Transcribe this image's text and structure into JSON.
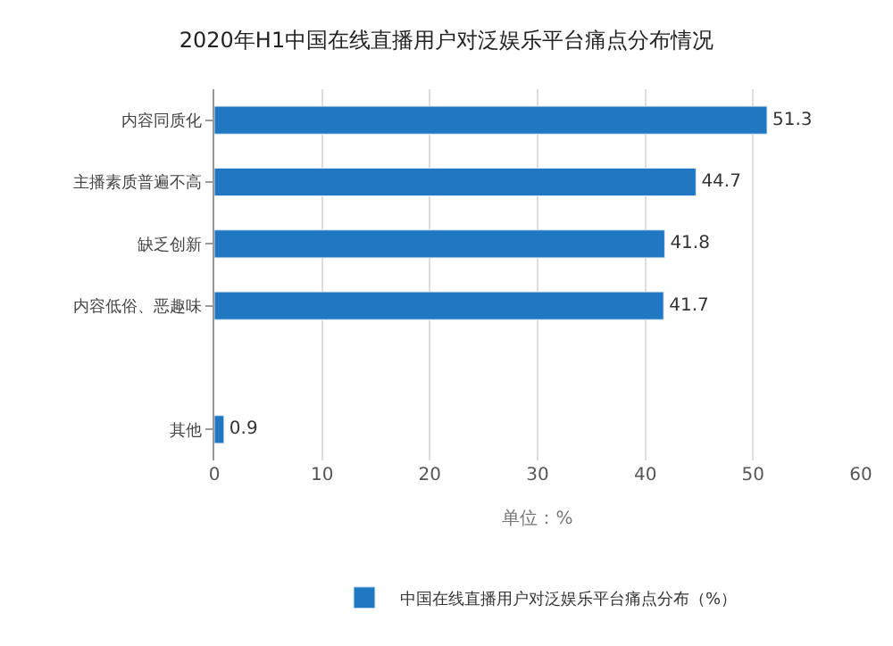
{
  "chart_data": {
    "type": "bar",
    "orientation": "horizontal",
    "title": "2020年H1中国在线直播用户对泛娱乐平台痛点分布情况",
    "xlabel": "单位：%",
    "categories": [
      "内容同质化",
      "主播素质普遍不高",
      "缺乏创新",
      "内容低俗、恶趣味",
      null,
      "其他"
    ],
    "series": [
      {
        "name": "中国在线直播用户对泛娱乐平台痛点分布（%）",
        "color": "#1f78c1",
        "values": [
          51.3,
          44.7,
          41.8,
          41.7,
          null,
          0.9
        ]
      }
    ],
    "xlim": [
      0,
      60
    ],
    "xticks": [
      0,
      10,
      20,
      30,
      40,
      50,
      60
    ],
    "grid": "x",
    "legend": "bottom",
    "data_labels": true
  }
}
